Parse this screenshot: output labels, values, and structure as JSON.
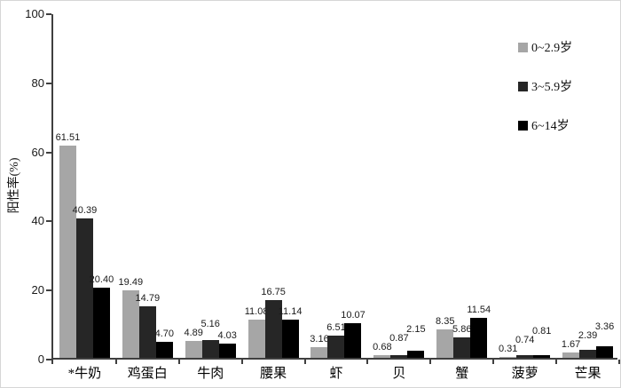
{
  "chart_data": {
    "type": "bar",
    "title": "",
    "ylabel": "阳性率(%)",
    "xlabel": "",
    "ylim": [
      0,
      100
    ],
    "yticks": [
      0,
      20,
      40,
      60,
      80,
      100
    ],
    "grid": false,
    "legend_position": "right-top",
    "categories": [
      "*牛奶",
      "鸡蛋白",
      "牛肉",
      "腰果",
      "虾",
      "贝",
      "蟹",
      "菠萝",
      "芒果"
    ],
    "series": [
      {
        "name": "0~2.9岁",
        "color": "#a6a6a6",
        "values": [
          61.51,
          19.49,
          4.89,
          11.08,
          3.16,
          0.68,
          8.35,
          0.31,
          1.67
        ]
      },
      {
        "name": "3~5.9岁",
        "color": "#262626",
        "values": [
          40.39,
          14.79,
          5.16,
          16.75,
          6.51,
          0.87,
          5.86,
          0.74,
          2.39
        ]
      },
      {
        "name": "6~14岁",
        "color": "#000000",
        "values": [
          20.4,
          4.7,
          4.03,
          11.14,
          10.07,
          2.15,
          11.54,
          0.81,
          3.36
        ]
      }
    ],
    "value_label_decimals": 2
  }
}
